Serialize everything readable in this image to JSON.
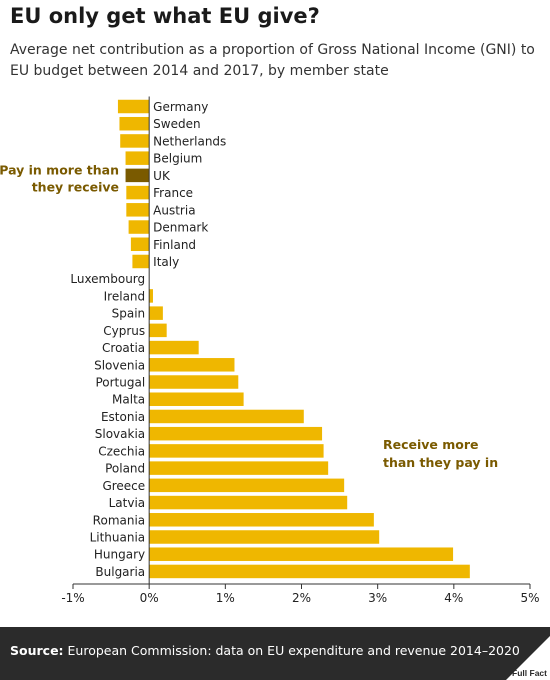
{
  "header": {
    "title": "EU only get what EU give?",
    "subtitle": "Average net contribution as a proportion of Gross National Income (GNI) to EU budget between 2014 and 2017, by member state"
  },
  "footer": {
    "source_label": "Source:",
    "source_text": "European Commission: data on EU expenditure and revenue 2014–2020",
    "logo_text": "Full Fact"
  },
  "colors": {
    "bar": "#EFB700",
    "highlight": "#7A5A00",
    "annotation": "#7A5A00",
    "axis": "#333333",
    "footer_bg": "#2b2b2b"
  },
  "chart_data": {
    "type": "bar",
    "orientation": "horizontal",
    "title": "EU only get what EU give?",
    "subtitle": "Average net contribution as a proportion of Gross National Income (GNI) to EU budget between 2014 and 2017, by member state",
    "xlabel": "",
    "ylabel": "",
    "unit": "%",
    "xlim": [
      -1,
      5
    ],
    "ticks": [
      -1,
      0,
      1,
      2,
      3,
      4,
      5
    ],
    "tick_labels": [
      "-1%",
      "0%",
      "1%",
      "2%",
      "3%",
      "4%",
      "5%"
    ],
    "grid": false,
    "categories": [
      "Germany",
      "Sweden",
      "Netherlands",
      "Belgium",
      "UK",
      "France",
      "Austria",
      "Denmark",
      "Finland",
      "Italy",
      "Luxembourg",
      "Ireland",
      "Spain",
      "Cyprus",
      "Croatia",
      "Slovenia",
      "Portugal",
      "Malta",
      "Estonia",
      "Slovakia",
      "Czechia",
      "Poland",
      "Greece",
      "Latvia",
      "Romania",
      "Lithuania",
      "Hungary",
      "Bulgaria"
    ],
    "values": [
      -0.41,
      -0.39,
      -0.38,
      -0.31,
      -0.31,
      -0.3,
      -0.3,
      -0.27,
      -0.24,
      -0.22,
      0.0,
      0.05,
      0.18,
      0.23,
      0.65,
      1.12,
      1.17,
      1.24,
      2.03,
      2.27,
      2.29,
      2.35,
      2.56,
      2.6,
      2.95,
      3.02,
      3.99,
      4.21
    ],
    "highlight": [
      "UK"
    ],
    "annotations": [
      {
        "text_lines": [
          "Pay in more than",
          "they receive"
        ],
        "near": "UK"
      },
      {
        "text_lines": [
          "Receive more",
          "than they pay in"
        ],
        "near": "Czechia"
      }
    ]
  }
}
